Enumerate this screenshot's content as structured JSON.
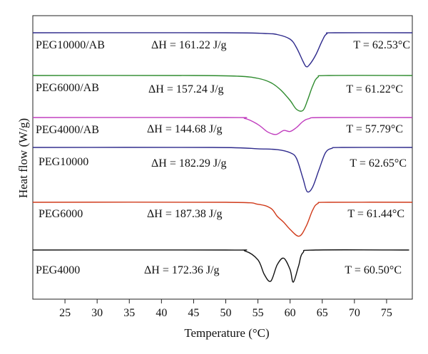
{
  "chart_data": {
    "type": "line",
    "xlabel": "Temperature (°C)",
    "ylabel": "Heat flow (W/g)",
    "xlim": [
      20,
      79
    ],
    "xticks": [
      25,
      30,
      35,
      40,
      45,
      50,
      55,
      60,
      65,
      70,
      75
    ],
    "y_ticks_shown": false,
    "grid": false,
    "legend": "none",
    "series": [
      {
        "name": "PEG10000/AB",
        "color": "#2e2a8c",
        "dh_text": "ΔH = 161.22 J/g",
        "t_text": "T = 62.53°C",
        "dh_value": 161.22,
        "t_value": 62.53,
        "points": [
          [
            20,
            0
          ],
          [
            50,
            0
          ],
          [
            56,
            -0.02
          ],
          [
            58,
            -0.05
          ],
          [
            60,
            -0.18
          ],
          [
            61,
            -0.42
          ],
          [
            62,
            -0.8
          ],
          [
            62.5,
            -0.95
          ],
          [
            63,
            -0.9
          ],
          [
            64,
            -0.62
          ],
          [
            65,
            -0.22
          ],
          [
            65.7,
            -0.03
          ],
          [
            67,
            0
          ],
          [
            79,
            0
          ]
        ]
      },
      {
        "name": "PEG6000/AB",
        "color": "#2e8b2e",
        "dh_text": "ΔH = 157.24 J/g",
        "t_text": "T = 61.22°C",
        "dh_value": 157.24,
        "t_value": 61.22,
        "points": [
          [
            20,
            0
          ],
          [
            45,
            0
          ],
          [
            52,
            -0.02
          ],
          [
            55,
            -0.08
          ],
          [
            57,
            -0.2
          ],
          [
            58.5,
            -0.4
          ],
          [
            60,
            -0.7
          ],
          [
            61,
            -0.95
          ],
          [
            62,
            -0.98
          ],
          [
            62.7,
            -0.7
          ],
          [
            63.5,
            -0.3
          ],
          [
            64.3,
            -0.05
          ],
          [
            66,
            0
          ],
          [
            79,
            0
          ]
        ]
      },
      {
        "name": "PEG4000/AB",
        "color": "#c03cbe",
        "dh_text": "ΔH = 144.68 J/g",
        "t_text": "T = 57.79°C",
        "dh_value": 144.68,
        "t_value": 57.79,
        "points": [
          [
            20,
            0
          ],
          [
            50,
            0
          ],
          [
            53,
            -0.05
          ],
          [
            55,
            -0.35
          ],
          [
            56.5,
            -0.72
          ],
          [
            57.8,
            -0.85
          ],
          [
            59,
            -0.65
          ],
          [
            60,
            -0.7
          ],
          [
            61,
            -0.5
          ],
          [
            62,
            -0.2
          ],
          [
            63,
            -0.05
          ],
          [
            65,
            0
          ],
          [
            79,
            0
          ]
        ]
      },
      {
        "name": "PEG10000",
        "color": "#2e2a8c",
        "dh_text": "ΔH = 182.29 J/g",
        "t_text": "T = 62.65°C",
        "dh_value": 182.29,
        "t_value": 62.65,
        "points": [
          [
            20,
            0
          ],
          [
            48,
            0
          ],
          [
            55,
            -0.03
          ],
          [
            58,
            -0.05
          ],
          [
            60,
            -0.12
          ],
          [
            61,
            -0.25
          ],
          [
            62,
            -0.7
          ],
          [
            62.65,
            -1.0
          ],
          [
            63.5,
            -0.9
          ],
          [
            64.5,
            -0.5
          ],
          [
            65.5,
            -0.12
          ],
          [
            66.5,
            -0.02
          ],
          [
            68,
            0
          ],
          [
            79,
            0
          ]
        ]
      },
      {
        "name": "PEG6000",
        "color": "#d03a1a",
        "dh_text": "ΔH = 187.38 J/g",
        "t_text": "T = 61.44°C",
        "dh_value": 187.38,
        "t_value": 61.44,
        "points": [
          [
            20,
            0
          ],
          [
            50,
            0
          ],
          [
            55,
            -0.05
          ],
          [
            57,
            -0.15
          ],
          [
            58,
            -0.35
          ],
          [
            59,
            -0.5
          ],
          [
            60,
            -0.68
          ],
          [
            61.4,
            -0.85
          ],
          [
            62.5,
            -0.6
          ],
          [
            63.5,
            -0.2
          ],
          [
            64.3,
            -0.03
          ],
          [
            66,
            0
          ],
          [
            79,
            0
          ]
        ]
      },
      {
        "name": "PEG4000",
        "color": "#111111",
        "dh_text": "ΔH = 172.36 J/g",
        "t_text": "T = 60.50°C",
        "dh_value": 172.36,
        "t_value": 60.5,
        "points": [
          [
            20,
            0
          ],
          [
            50,
            0
          ],
          [
            53,
            -0.03
          ],
          [
            55,
            -0.3
          ],
          [
            56,
            -0.75
          ],
          [
            57,
            -0.95
          ],
          [
            58,
            -0.45
          ],
          [
            59,
            -0.25
          ],
          [
            60,
            -0.6
          ],
          [
            60.5,
            -0.98
          ],
          [
            61.3,
            -0.5
          ],
          [
            62,
            -0.08
          ],
          [
            64,
            0
          ],
          [
            78.5,
            0
          ]
        ]
      }
    ]
  }
}
